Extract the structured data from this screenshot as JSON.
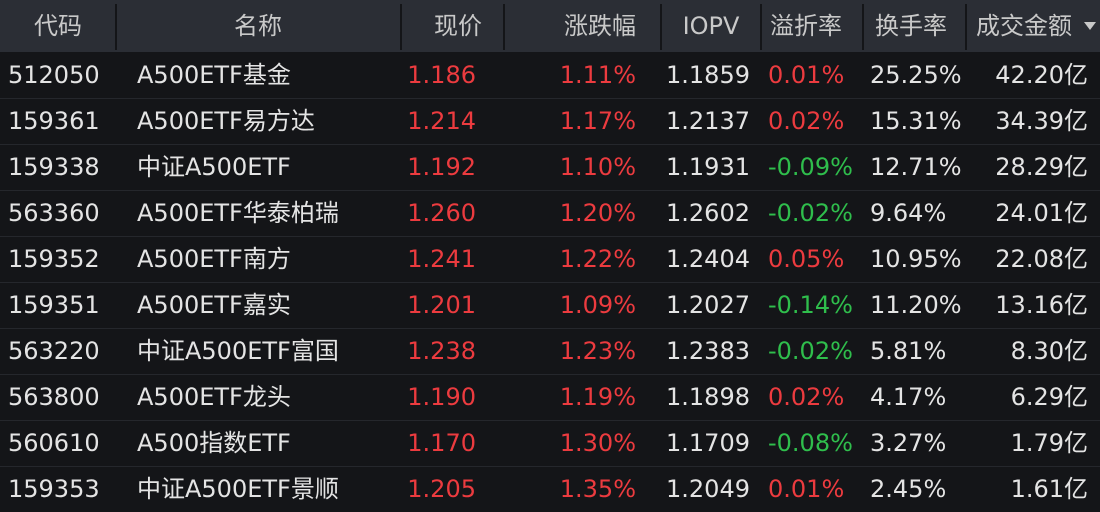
{
  "table": {
    "header": [
      "代码",
      "名称",
      "现价",
      "涨跌幅",
      "IOPV",
      "溢折率",
      "换手率",
      "成交金额"
    ],
    "rows": [
      [
        "512050",
        "A500ETF基金",
        "1.186",
        "1.11%",
        "1.1859",
        "0.01%",
        "25.25%",
        "42.20亿"
      ],
      [
        "159361",
        "A500ETF易方达",
        "1.214",
        "1.17%",
        "1.2137",
        "0.02%",
        "15.31%",
        "34.39亿"
      ],
      [
        "159338",
        "中证A500ETF",
        "1.192",
        "1.10%",
        "1.1931",
        "-0.09%",
        "12.71%",
        "28.29亿"
      ],
      [
        "563360",
        "A500ETF华泰柏瑞",
        "1.260",
        "1.20%",
        "1.2602",
        "-0.02%",
        "9.64%",
        "24.01亿"
      ],
      [
        "159352",
        "A500ETF南方",
        "1.241",
        "1.22%",
        "1.2404",
        "0.05%",
        "10.95%",
        "22.08亿"
      ],
      [
        "159351",
        "A500ETF嘉实",
        "1.201",
        "1.09%",
        "1.2027",
        "-0.14%",
        "11.20%",
        "13.16亿"
      ],
      [
        "563220",
        "中证A500ETF富国",
        "1.238",
        "1.23%",
        "1.2383",
        "-0.02%",
        "5.81%",
        "8.30亿"
      ],
      [
        "563800",
        "A500ETF龙头",
        "1.190",
        "1.19%",
        "1.1898",
        "0.02%",
        "4.17%",
        "6.29亿"
      ],
      [
        "560610",
        "A500指数ETF",
        "1.170",
        "1.30%",
        "1.1709",
        "-0.08%",
        "3.27%",
        "1.79亿"
      ],
      [
        "159353",
        "中证A500ETF景顺",
        "1.205",
        "1.35%",
        "1.2049",
        "0.01%",
        "2.45%",
        "1.61亿"
      ]
    ]
  }
}
